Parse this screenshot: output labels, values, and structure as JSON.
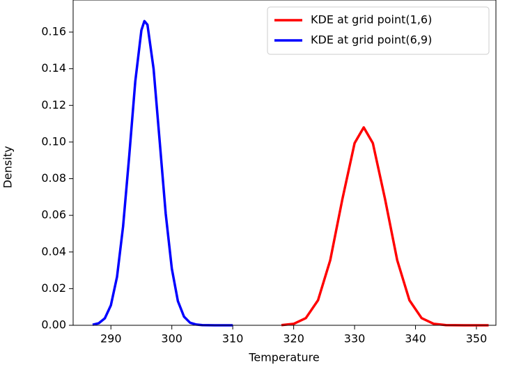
{
  "chart_data": {
    "type": "line",
    "x_label": "Temperature",
    "y_label": "Density",
    "xlim": [
      283.8,
      353.2
    ],
    "xticks": [
      290,
      300,
      310,
      320,
      330,
      340,
      350
    ],
    "ylim": [
      0,
      0.1775
    ],
    "yticks": [
      {
        "value": 0,
        "label": "0.00"
      },
      0.02,
      0.04,
      0.06,
      0.08,
      {
        "value": 0.1,
        "label": "0.10"
      },
      0.12,
      0.14,
      0.16
    ],
    "legend": "upper right",
    "series": [
      {
        "name": "KDE at grid point(1,6)",
        "color": "#ff0000",
        "x": [
          318,
          320,
          322,
          324,
          326,
          328,
          330,
          331.5,
          333,
          335,
          337,
          339,
          341,
          343,
          345,
          348,
          352
        ],
        "values": [
          0.0001,
          0.0008,
          0.0039,
          0.0137,
          0.0355,
          0.0689,
          0.0994,
          0.108,
          0.0994,
          0.0689,
          0.0355,
          0.0137,
          0.0039,
          0.0008,
          0.0001,
          0,
          0
        ]
      },
      {
        "name": "KDE at grid point(6,9)",
        "color": "#0000ff",
        "x": [
          287,
          288,
          289,
          290,
          291,
          292,
          293,
          294,
          295,
          295.5,
          296,
          297,
          298,
          299,
          300,
          301,
          302,
          303,
          304,
          305,
          307,
          310
        ],
        "values": [
          0.0003,
          0.0011,
          0.0038,
          0.0109,
          0.0264,
          0.0539,
          0.0923,
          0.133,
          0.161,
          0.166,
          0.164,
          0.14,
          0.1007,
          0.0609,
          0.0309,
          0.0132,
          0.0047,
          0.0014,
          0.0004,
          0.0001,
          0,
          0
        ]
      }
    ]
  }
}
